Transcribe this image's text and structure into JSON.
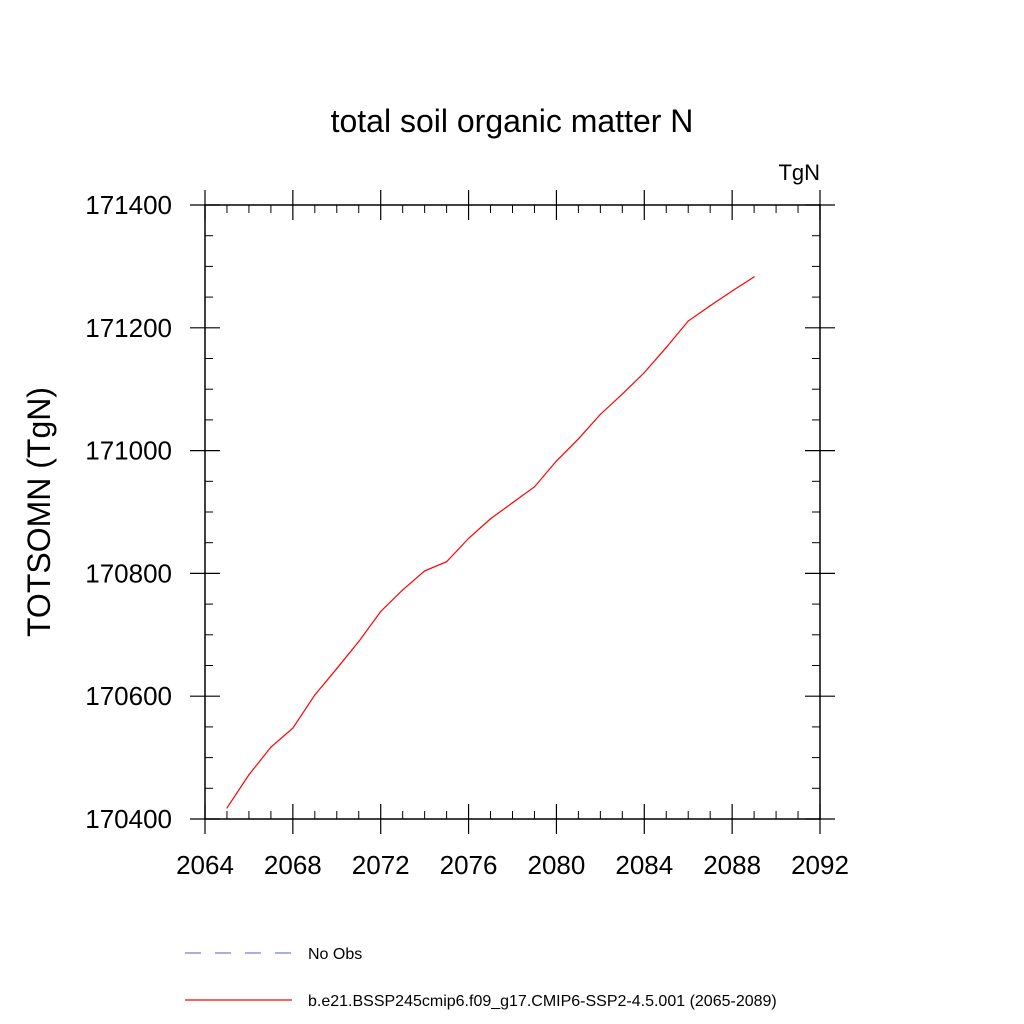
{
  "chart_data": {
    "type": "line",
    "title": "total soil organic matter N",
    "units_label": "TgN",
    "xlabel": "",
    "ylabel": "TOTSOMN  (TgN)",
    "xlim": [
      2064,
      2092
    ],
    "ylim": [
      170400,
      171400
    ],
    "x_ticks": [
      2064,
      2068,
      2072,
      2076,
      2080,
      2084,
      2088,
      2092
    ],
    "y_ticks": [
      170400,
      170600,
      170800,
      171000,
      171200,
      171400
    ],
    "x_minor_step": 1,
    "y_minor_step": 50,
    "grid": false,
    "series": [
      {
        "name": "b.e21.BSSP245cmip6.f09_g17.CMIP6-SSP2-4.5.001 (2065-2089)",
        "color": "#ff0000",
        "dash": "solid",
        "x": [
          2065,
          2066,
          2067,
          2068,
          2069,
          2070,
          2071,
          2072,
          2073,
          2074,
          2075,
          2076,
          2077,
          2078,
          2079,
          2080,
          2081,
          2082,
          2083,
          2084,
          2085,
          2086,
          2087,
          2088,
          2089
        ],
        "y": [
          170418,
          170472,
          170517,
          170548,
          170602,
          170645,
          170689,
          170738,
          170773,
          170804,
          170819,
          170857,
          170889,
          170915,
          170941,
          170983,
          171019,
          171059,
          171092,
          171127,
          171168,
          171211,
          171236,
          171260,
          171283
        ]
      }
    ],
    "legend": [
      {
        "label": "No Obs",
        "color": "#7b7bd6",
        "dash": "dashed"
      },
      {
        "label": "b.e21.BSSP245cmip6.f09_g17.CMIP6-SSP2-4.5.001 (2065-2089)",
        "color": "#ff0000",
        "dash": "solid"
      }
    ],
    "legend_position": "bottom"
  }
}
